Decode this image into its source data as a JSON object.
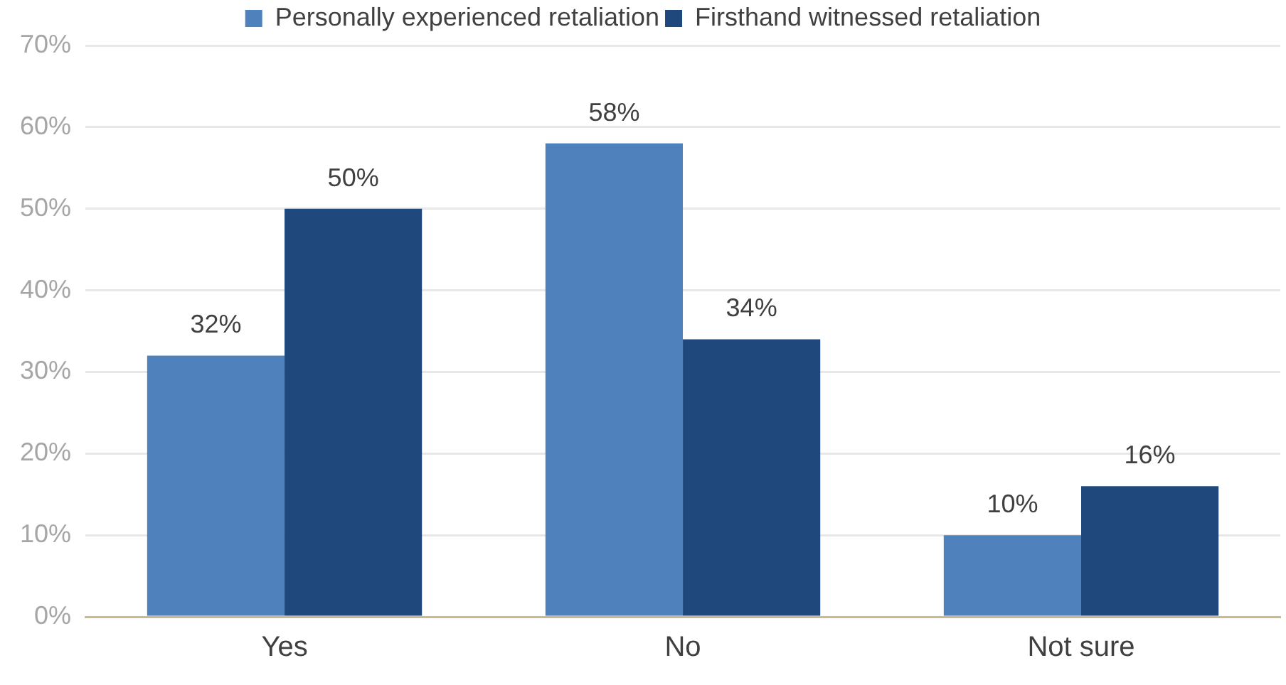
{
  "chart_data": {
    "type": "bar",
    "categories": [
      "Yes",
      "No",
      "Not sure"
    ],
    "series": [
      {
        "name": "Personally experienced retaliation",
        "color": "#4f81bd",
        "values": [
          32,
          58,
          10
        ],
        "value_labels": [
          "32%",
          "58%",
          "10%"
        ]
      },
      {
        "name": "Firsthand witnessed retaliation",
        "color": "#1f497d",
        "values": [
          50,
          34,
          16
        ],
        "value_labels": [
          "50%",
          "34%",
          "16%"
        ]
      }
    ],
    "ylim": [
      0,
      70
    ],
    "yticks": [
      {
        "value": 0,
        "label": "0%"
      },
      {
        "value": 10,
        "label": "10%"
      },
      {
        "value": 20,
        "label": "20%"
      },
      {
        "value": 30,
        "label": "30%"
      },
      {
        "value": 40,
        "label": "40%"
      },
      {
        "value": 50,
        "label": "50%"
      },
      {
        "value": 60,
        "label": "60%"
      },
      {
        "value": 70,
        "label": "70%"
      }
    ],
    "grid": "y",
    "legend": "top"
  }
}
